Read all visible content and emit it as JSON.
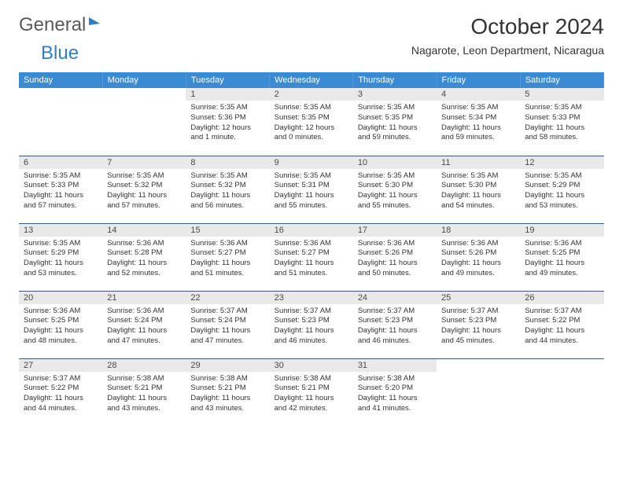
{
  "logo": {
    "part1": "General",
    "part2": "Blue"
  },
  "title": "October 2024",
  "location": "Nagarote, Leon Department, Nicaragua",
  "colors": {
    "header_bg": "#3b8bd4",
    "header_text": "#ffffff",
    "daynum_bg": "#e9e9e9",
    "row_border": "#3b5a7a",
    "logo_gray": "#5a5a5a",
    "logo_blue": "#2f7fc3",
    "body_text": "#333333",
    "background": "#ffffff"
  },
  "typography": {
    "title_fontsize": 28,
    "location_fontsize": 14,
    "weekday_fontsize": 11,
    "daynum_fontsize": 11,
    "cell_fontsize": 9.5
  },
  "weekdays": [
    "Sunday",
    "Monday",
    "Tuesday",
    "Wednesday",
    "Thursday",
    "Friday",
    "Saturday"
  ],
  "weeks": [
    [
      {
        "empty": true
      },
      {
        "empty": true
      },
      {
        "num": "1",
        "sunrise": "5:35 AM",
        "sunset": "5:36 PM",
        "daylight": "12 hours and 1 minute."
      },
      {
        "num": "2",
        "sunrise": "5:35 AM",
        "sunset": "5:35 PM",
        "daylight": "12 hours and 0 minutes."
      },
      {
        "num": "3",
        "sunrise": "5:35 AM",
        "sunset": "5:35 PM",
        "daylight": "11 hours and 59 minutes."
      },
      {
        "num": "4",
        "sunrise": "5:35 AM",
        "sunset": "5:34 PM",
        "daylight": "11 hours and 59 minutes."
      },
      {
        "num": "5",
        "sunrise": "5:35 AM",
        "sunset": "5:33 PM",
        "daylight": "11 hours and 58 minutes."
      }
    ],
    [
      {
        "num": "6",
        "sunrise": "5:35 AM",
        "sunset": "5:33 PM",
        "daylight": "11 hours and 57 minutes."
      },
      {
        "num": "7",
        "sunrise": "5:35 AM",
        "sunset": "5:32 PM",
        "daylight": "11 hours and 57 minutes."
      },
      {
        "num": "8",
        "sunrise": "5:35 AM",
        "sunset": "5:32 PM",
        "daylight": "11 hours and 56 minutes."
      },
      {
        "num": "9",
        "sunrise": "5:35 AM",
        "sunset": "5:31 PM",
        "daylight": "11 hours and 55 minutes."
      },
      {
        "num": "10",
        "sunrise": "5:35 AM",
        "sunset": "5:30 PM",
        "daylight": "11 hours and 55 minutes."
      },
      {
        "num": "11",
        "sunrise": "5:35 AM",
        "sunset": "5:30 PM",
        "daylight": "11 hours and 54 minutes."
      },
      {
        "num": "12",
        "sunrise": "5:35 AM",
        "sunset": "5:29 PM",
        "daylight": "11 hours and 53 minutes."
      }
    ],
    [
      {
        "num": "13",
        "sunrise": "5:35 AM",
        "sunset": "5:29 PM",
        "daylight": "11 hours and 53 minutes."
      },
      {
        "num": "14",
        "sunrise": "5:36 AM",
        "sunset": "5:28 PM",
        "daylight": "11 hours and 52 minutes."
      },
      {
        "num": "15",
        "sunrise": "5:36 AM",
        "sunset": "5:27 PM",
        "daylight": "11 hours and 51 minutes."
      },
      {
        "num": "16",
        "sunrise": "5:36 AM",
        "sunset": "5:27 PM",
        "daylight": "11 hours and 51 minutes."
      },
      {
        "num": "17",
        "sunrise": "5:36 AM",
        "sunset": "5:26 PM",
        "daylight": "11 hours and 50 minutes."
      },
      {
        "num": "18",
        "sunrise": "5:36 AM",
        "sunset": "5:26 PM",
        "daylight": "11 hours and 49 minutes."
      },
      {
        "num": "19",
        "sunrise": "5:36 AM",
        "sunset": "5:25 PM",
        "daylight": "11 hours and 49 minutes."
      }
    ],
    [
      {
        "num": "20",
        "sunrise": "5:36 AM",
        "sunset": "5:25 PM",
        "daylight": "11 hours and 48 minutes."
      },
      {
        "num": "21",
        "sunrise": "5:36 AM",
        "sunset": "5:24 PM",
        "daylight": "11 hours and 47 minutes."
      },
      {
        "num": "22",
        "sunrise": "5:37 AM",
        "sunset": "5:24 PM",
        "daylight": "11 hours and 47 minutes."
      },
      {
        "num": "23",
        "sunrise": "5:37 AM",
        "sunset": "5:23 PM",
        "daylight": "11 hours and 46 minutes."
      },
      {
        "num": "24",
        "sunrise": "5:37 AM",
        "sunset": "5:23 PM",
        "daylight": "11 hours and 46 minutes."
      },
      {
        "num": "25",
        "sunrise": "5:37 AM",
        "sunset": "5:23 PM",
        "daylight": "11 hours and 45 minutes."
      },
      {
        "num": "26",
        "sunrise": "5:37 AM",
        "sunset": "5:22 PM",
        "daylight": "11 hours and 44 minutes."
      }
    ],
    [
      {
        "num": "27",
        "sunrise": "5:37 AM",
        "sunset": "5:22 PM",
        "daylight": "11 hours and 44 minutes."
      },
      {
        "num": "28",
        "sunrise": "5:38 AM",
        "sunset": "5:21 PM",
        "daylight": "11 hours and 43 minutes."
      },
      {
        "num": "29",
        "sunrise": "5:38 AM",
        "sunset": "5:21 PM",
        "daylight": "11 hours and 43 minutes."
      },
      {
        "num": "30",
        "sunrise": "5:38 AM",
        "sunset": "5:21 PM",
        "daylight": "11 hours and 42 minutes."
      },
      {
        "num": "31",
        "sunrise": "5:38 AM",
        "sunset": "5:20 PM",
        "daylight": "11 hours and 41 minutes."
      },
      {
        "empty": true
      },
      {
        "empty": true
      }
    ]
  ],
  "labels": {
    "sunrise": "Sunrise:",
    "sunset": "Sunset:",
    "daylight": "Daylight:"
  }
}
